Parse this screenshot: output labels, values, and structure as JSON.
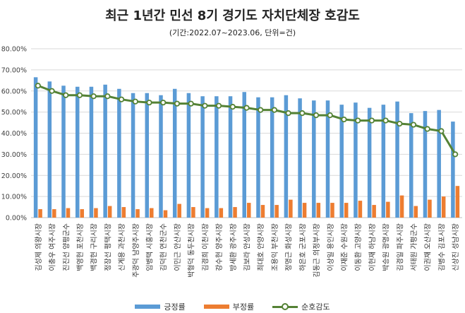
{
  "chart_data": {
    "type": "bar",
    "title": "최근 1년간 민선 8기 경기도 자치단체장 호감도",
    "subtitle": "(기간:2022.07~2023.06, 단위=건)",
    "categories": [
      "김성제 의왕시장",
      "이충우 여주시장",
      "진진선 양평군수",
      "백영현 포천시장",
      "백경현 구리시장",
      "정장선 평택시장",
      "신계용 과천시장",
      "주광덕 남양주시장",
      "임병택 시흥시장",
      "김덕현 연천군수",
      "이민근 안산시장",
      "박형덕 동두천시장",
      "김경희 이천시장",
      "강수현 양주시장",
      "방세환 광주시장",
      "김보라 안성시장",
      "최대호 안양시장",
      "조용익 부천시장",
      "정명근 화성시장",
      "하은호 군포시장",
      "김동근 의정부시장",
      "이상일 용인시장",
      "이재준 수원시장",
      "이동환 고양시장",
      "이현재 하남시장",
      "박승원 광명시장",
      "김경일 파주시장",
      "서태원 가평군수",
      "이권재 오산시장",
      "김병수 김포시장",
      "신상진 성남시장"
    ],
    "series": [
      {
        "name": "긍정률",
        "type": "bar",
        "color": "#5b9bd5",
        "values": [
          66.5,
          64.5,
          62.5,
          62.0,
          62.0,
          63.0,
          61.0,
          59.0,
          59.0,
          58.0,
          61.0,
          59.0,
          57.5,
          57.5,
          57.5,
          59.5,
          57.0,
          57.0,
          58.0,
          56.5,
          55.5,
          55.5,
          53.5,
          54.5,
          52.0,
          53.5,
          55.0,
          49.5,
          50.5,
          51.0,
          45.5
        ]
      },
      {
        "name": "부정률",
        "type": "bar",
        "color": "#ed7d31",
        "values": [
          4.0,
          4.0,
          4.5,
          4.0,
          4.5,
          5.5,
          5.0,
          4.0,
          4.5,
          3.5,
          6.5,
          5.0,
          4.5,
          4.5,
          5.0,
          7.0,
          6.0,
          6.0,
          8.5,
          7.0,
          7.0,
          7.0,
          7.0,
          8.0,
          6.0,
          7.5,
          10.5,
          5.5,
          8.5,
          10.0,
          15.0
        ]
      },
      {
        "name": "순호감도",
        "type": "line",
        "color": "#548235",
        "values": [
          62.5,
          60.0,
          58.0,
          58.0,
          57.5,
          57.5,
          56.0,
          55.0,
          54.5,
          54.5,
          54.0,
          54.0,
          53.0,
          53.0,
          52.5,
          52.0,
          51.0,
          51.0,
          49.5,
          49.5,
          48.5,
          48.5,
          46.5,
          46.0,
          46.0,
          46.0,
          44.5,
          44.0,
          42.0,
          41.0,
          30.0
        ]
      }
    ],
    "yticks": [
      "0.00%",
      "10.00%",
      "20.00%",
      "30.00%",
      "40.00%",
      "50.00%",
      "60.00%",
      "70.00%",
      "80.00%"
    ],
    "ylim": [
      0,
      80
    ],
    "grid": true,
    "legend_position": "bottom"
  }
}
